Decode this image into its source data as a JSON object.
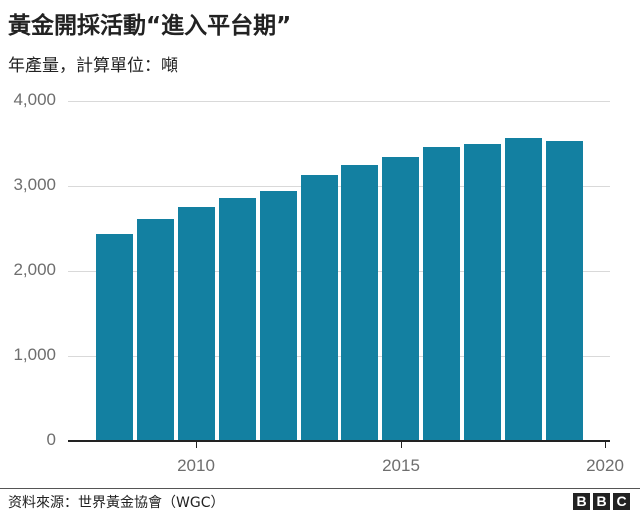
{
  "header": {
    "title": "黃金開採活動“進入平台期”",
    "subtitle": "年產量，計算單位：噸"
  },
  "footer": {
    "source": "资料來源：世界黃金協會（WGC）",
    "logo_letters": [
      "B",
      "B",
      "C"
    ]
  },
  "colors": {
    "bar": "#1380A1",
    "grid": "#d9d9d9",
    "axis": "#222222",
    "tick_text": "#6e6e6e"
  },
  "chart_data": {
    "type": "bar",
    "title": "黃金開採活動“進入平台期”",
    "subtitle": "年產量，計算單位：噸",
    "xlabel": "",
    "ylabel": "",
    "categories": [
      "2008",
      "2009",
      "2010",
      "2011",
      "2012",
      "2013",
      "2014",
      "2015",
      "2016",
      "2017",
      "2018",
      "2019"
    ],
    "values": [
      2435,
      2612,
      2753,
      2859,
      2941,
      3129,
      3247,
      3341,
      3459,
      3494,
      3565,
      3529
    ],
    "ylim": [
      0,
      4000
    ],
    "y_ticks": [
      "0",
      "1,000",
      "2,000",
      "3,000",
      "4,000"
    ],
    "x_ticks": [
      "2010",
      "2015",
      "2020"
    ],
    "grid": true,
    "legend": "none",
    "source": "资料來源：世界黃金協會（WGC）"
  }
}
